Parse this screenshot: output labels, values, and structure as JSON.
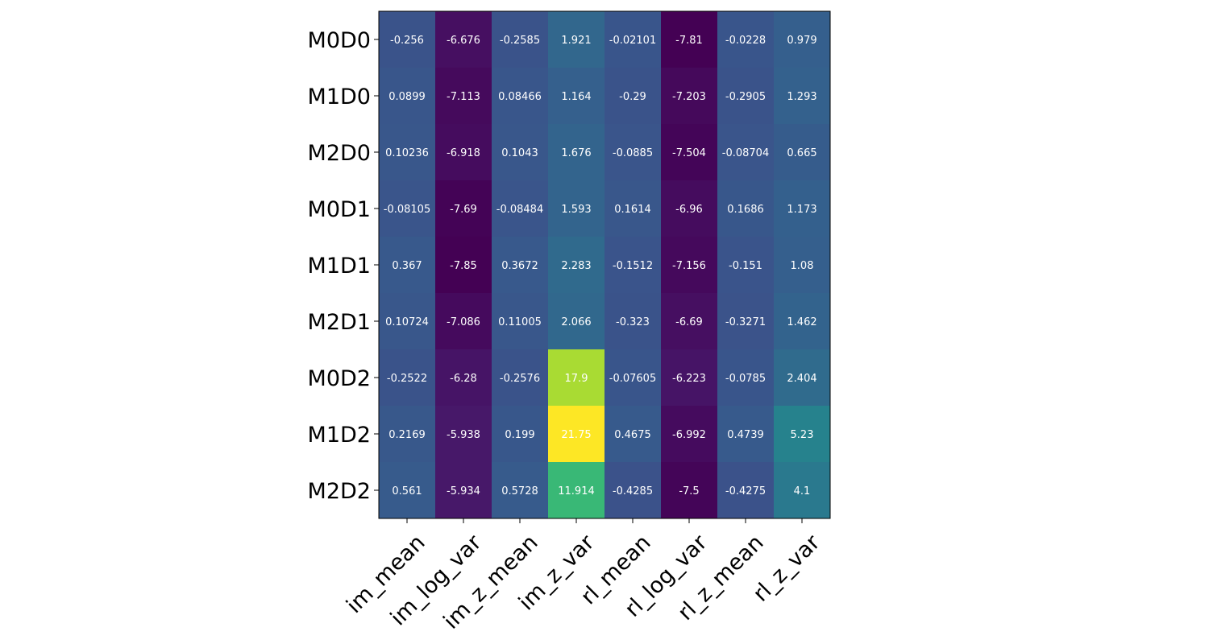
{
  "chart_data": {
    "type": "heatmap",
    "title": "",
    "xlabel": "",
    "ylabel": "",
    "colormap": "viridis",
    "x_categories": [
      "im_mean",
      "im_log_var",
      "im_z_mean",
      "im_z_var",
      "rl_mean",
      "rl_log_var",
      "rl_z_mean",
      "rl_z_var"
    ],
    "y_categories": [
      "M0D0",
      "M1D0",
      "M2D0",
      "M0D1",
      "M1D1",
      "M2D1",
      "M0D2",
      "M1D2",
      "M2D2"
    ],
    "values": [
      [
        -0.256,
        -6.676,
        -0.2585,
        1.921,
        -0.02101,
        -7.81,
        -0.0228,
        0.979
      ],
      [
        0.0899,
        -7.113,
        0.08466,
        1.164,
        -0.29,
        -7.203,
        -0.2905,
        1.293
      ],
      [
        0.10236,
        -6.918,
        0.1043,
        1.676,
        -0.0885,
        -7.504,
        -0.08704,
        0.665
      ],
      [
        -0.08105,
        -7.69,
        -0.08484,
        1.593,
        0.1614,
        -6.96,
        0.1686,
        1.173
      ],
      [
        0.367,
        -7.85,
        0.3672,
        2.283,
        -0.1512,
        -7.156,
        -0.151,
        1.08
      ],
      [
        0.10724,
        -7.086,
        0.11005,
        2.066,
        -0.323,
        -6.69,
        -0.3271,
        1.462
      ],
      [
        -0.2522,
        -6.28,
        -0.2576,
        17.9,
        -0.07605,
        -6.223,
        -0.0785,
        2.404
      ],
      [
        0.2169,
        -5.938,
        0.199,
        21.75,
        0.4675,
        -6.992,
        0.4739,
        5.23
      ],
      [
        0.561,
        -5.934,
        0.5728,
        11.914,
        -0.4285,
        -7.5,
        -0.4275,
        4.1
      ]
    ],
    "value_labels": [
      [
        "-0.256",
        "-6.676",
        "-0.2585",
        "1.921",
        "-0.02101",
        "-7.81",
        "-0.0228",
        "0.979"
      ],
      [
        "0.0899",
        "-7.113",
        "0.08466",
        "1.164",
        "-0.29",
        "-7.203",
        "-0.2905",
        "1.293"
      ],
      [
        "0.10236",
        "-6.918",
        "0.1043",
        "1.676",
        "-0.0885",
        "-7.504",
        "-0.08704",
        "0.665"
      ],
      [
        "-0.08105",
        "-7.69",
        "-0.08484",
        "1.593",
        "0.1614",
        "-6.96",
        "0.1686",
        "1.173"
      ],
      [
        "0.367",
        "-7.85",
        "0.3672",
        "2.283",
        "-0.1512",
        "-7.156",
        "-0.151",
        "1.08"
      ],
      [
        "0.10724",
        "-7.086",
        "0.11005",
        "2.066",
        "-0.323",
        "-6.69",
        "-0.3271",
        "1.462"
      ],
      [
        "-0.2522",
        "-6.28",
        "-0.2576",
        "17.9",
        "-0.07605",
        "-6.223",
        "-0.0785",
        "2.404"
      ],
      [
        "0.2169",
        "-5.938",
        "0.199",
        "21.75",
        "0.4675",
        "-6.992",
        "0.4739",
        "5.23"
      ],
      [
        "0.561",
        "-5.934",
        "0.5728",
        "11.914",
        "-0.4285",
        "-7.5",
        "-0.4275",
        "4.1"
      ]
    ],
    "grid": false,
    "legend": "none"
  }
}
